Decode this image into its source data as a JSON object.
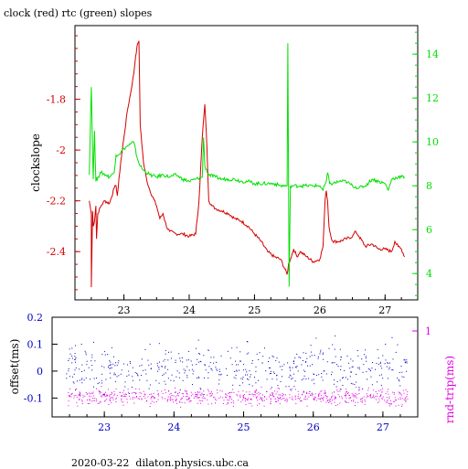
{
  "title": "clock (red) rtc (green) slopes",
  "footer": "2020-03-22  dilaton.physics.ubc.ca",
  "colors": {
    "clock": "#d40000",
    "rtc": "#00e000",
    "offset": "#0000c0",
    "rtt": "#e000e0",
    "axis": "#000000"
  },
  "chart_data": [
    {
      "type": "line",
      "title": "clock (red) rtc (green) slopes",
      "ylabel": "clockslope",
      "xlim": [
        22.25,
        27.5
      ],
      "ylim_left": [
        -2.59,
        -1.51
      ],
      "ylim_right": [
        2.8,
        15.3
      ],
      "x_ticks": [
        23,
        24,
        25,
        26,
        27
      ],
      "y_ticks_left": [
        -1.8,
        -2,
        -2.2,
        -2.4
      ],
      "y_ticks_right": [
        4,
        6,
        8,
        10,
        12,
        14
      ],
      "series": [
        {
          "axis": "left",
          "x": [
            22.47,
            22.5,
            22.5,
            22.52,
            22.53,
            22.55,
            22.57,
            22.58,
            22.6,
            22.65,
            22.7,
            22.78,
            22.85,
            22.88,
            22.9,
            22.95,
            23.0,
            23.05,
            23.1,
            23.15,
            23.18,
            23.21,
            23.23,
            23.25,
            23.3,
            23.35,
            23.4,
            23.5,
            23.55,
            23.6,
            23.65,
            23.7,
            23.8,
            23.9,
            24.0,
            24.1,
            24.15,
            24.2,
            24.24,
            24.27,
            24.3,
            24.35,
            24.4,
            24.5,
            24.6,
            24.7,
            24.8,
            24.9,
            25.0,
            25.1,
            25.2,
            25.3,
            25.4,
            25.5,
            25.52,
            25.55,
            25.6,
            25.65,
            25.7,
            25.8,
            25.9,
            26.0,
            26.05,
            26.08,
            26.1,
            26.12,
            26.14,
            26.17,
            26.2,
            26.3,
            26.4,
            26.5,
            26.55,
            26.6,
            26.7,
            26.8,
            26.9,
            27.0,
            27.1,
            27.15,
            27.2,
            27.25,
            27.3
          ],
          "y": [
            -2.2,
            -2.25,
            -2.54,
            -2.24,
            -2.3,
            -2.28,
            -2.22,
            -2.35,
            -2.25,
            -2.22,
            -2.2,
            -2.21,
            -2.15,
            -2.14,
            -2.18,
            -2.05,
            -1.95,
            -1.85,
            -1.78,
            -1.7,
            -1.63,
            -1.58,
            -1.57,
            -1.9,
            -2.05,
            -2.12,
            -2.16,
            -2.22,
            -2.27,
            -2.25,
            -2.3,
            -2.32,
            -2.33,
            -2.33,
            -2.34,
            -2.33,
            -2.2,
            -1.95,
            -1.82,
            -1.98,
            -2.2,
            -2.22,
            -2.23,
            -2.24,
            -2.25,
            -2.27,
            -2.28,
            -2.3,
            -2.33,
            -2.36,
            -2.4,
            -2.42,
            -2.43,
            -2.49,
            -2.45,
            -2.43,
            -2.39,
            -2.42,
            -2.4,
            -2.42,
            -2.44,
            -2.43,
            -2.38,
            -2.2,
            -2.16,
            -2.2,
            -2.3,
            -2.34,
            -2.36,
            -2.36,
            -2.35,
            -2.34,
            -2.32,
            -2.34,
            -2.38,
            -2.37,
            -2.39,
            -2.39,
            -2.4,
            -2.36,
            -2.38,
            -2.39,
            -2.42
          ],
          "color": "#d40000"
        },
        {
          "axis": "right",
          "x": [
            22.47,
            22.5,
            22.53,
            22.55,
            22.57,
            22.6,
            22.65,
            22.72,
            22.78,
            22.85,
            22.88,
            22.95,
            23.0,
            23.05,
            23.1,
            23.15,
            23.2,
            23.25,
            23.3,
            23.4,
            23.5,
            23.6,
            23.7,
            23.8,
            23.9,
            24.0,
            24.1,
            24.2,
            24.22,
            24.24,
            24.3,
            24.4,
            24.5,
            24.6,
            24.7,
            24.8,
            24.9,
            25.0,
            25.2,
            25.3,
            25.4,
            25.5,
            25.51,
            25.53,
            25.55,
            25.6,
            25.7,
            25.8,
            25.9,
            26.0,
            26.05,
            26.1,
            26.12,
            26.15,
            26.2,
            26.3,
            26.4,
            26.5,
            26.6,
            26.7,
            26.8,
            26.9,
            27.0,
            27.05,
            27.1,
            27.2,
            27.3
          ],
          "y": [
            8.5,
            12.5,
            8.3,
            10.5,
            8.2,
            8.4,
            8.6,
            8.5,
            8.4,
            8.6,
            9.4,
            9.5,
            9.7,
            9.8,
            9.9,
            10.0,
            9.3,
            8.9,
            8.7,
            8.5,
            8.4,
            8.5,
            8.4,
            8.5,
            8.3,
            8.2,
            8.3,
            8.4,
            10.2,
            8.9,
            8.5,
            8.4,
            8.3,
            8.3,
            8.3,
            8.2,
            8.2,
            8.1,
            8.1,
            8.1,
            8.0,
            8.0,
            14.5,
            3.4,
            8.0,
            8.0,
            8.0,
            8.0,
            8.0,
            8.0,
            7.8,
            8.2,
            8.6,
            8.1,
            8.1,
            8.2,
            8.2,
            8.0,
            7.9,
            8.0,
            8.3,
            8.2,
            8.1,
            7.8,
            8.3,
            8.4,
            8.4
          ],
          "color": "#00e000"
        }
      ]
    },
    {
      "type": "scatter",
      "ylabel": "offset(ms)",
      "ylabel_right": "rnd-trip(ms)",
      "xlim": [
        22.25,
        27.5
      ],
      "ylim": [
        -0.17,
        0.2
      ],
      "x_ticks": [
        23,
        24,
        25,
        26,
        27
      ],
      "y_ticks_left": [
        0.2,
        0.1,
        0,
        -0.1
      ],
      "y_ticks_right": [
        1
      ],
      "series": [
        {
          "name": "offset",
          "x_range": [
            22.45,
            27.35
          ],
          "y_center": 0.01,
          "y_spread": 0.08,
          "color": "#0000c0"
        },
        {
          "name": "rnd-trip",
          "x_range": [
            22.45,
            27.35
          ],
          "y_center": -0.095,
          "y_spread": 0.03,
          "color": "#e000e0"
        }
      ]
    }
  ]
}
